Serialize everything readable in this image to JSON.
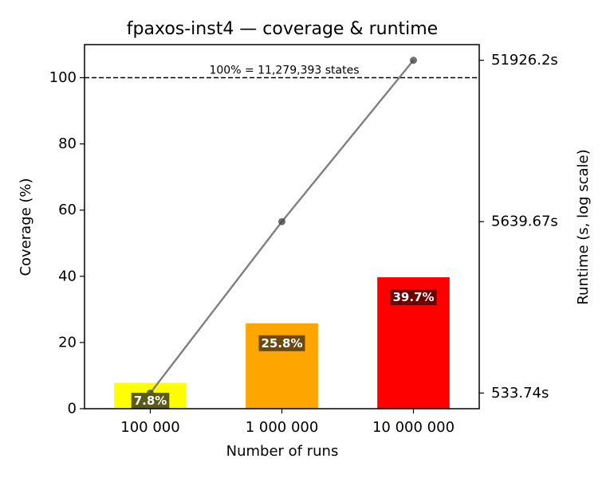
{
  "chart_data": {
    "type": "bar",
    "title": "fpaxos-inst4 — coverage & runtime",
    "xlabel": "Number of runs",
    "ylabel": "Coverage (%)",
    "y2label": "Runtime (s, log scale)",
    "ylim": [
      0,
      110
    ],
    "yticks": [
      0,
      20,
      40,
      60,
      80,
      100
    ],
    "categories": [
      "100 000",
      "1 000 000",
      "10 000 000"
    ],
    "series": [
      {
        "kind": "bar",
        "values": [
          7.8,
          25.8,
          39.7
        ],
        "labels": [
          "7.8%",
          "25.8%",
          "39.7%"
        ],
        "colors": [
          "#ffff00",
          "#ffa500",
          "#ff0000"
        ],
        "label_bg": [
          "#5a5a1a",
          "#6b4a12",
          "#6e0000"
        ]
      },
      {
        "kind": "line",
        "axis": "right",
        "scale": "log",
        "values": [
          533.74,
          5639.67,
          51926.2
        ],
        "color": "#808080"
      }
    ],
    "y2ticks": [
      {
        "value": 533.74,
        "label": "533.74s"
      },
      {
        "value": 5639.67,
        "label": "5639.67s"
      },
      {
        "value": 51926.2,
        "label": "51926.2s"
      }
    ],
    "reference_line": {
      "y": 100,
      "label": "100% = 11,279,393 states",
      "style": "dashed"
    },
    "grid": false
  }
}
